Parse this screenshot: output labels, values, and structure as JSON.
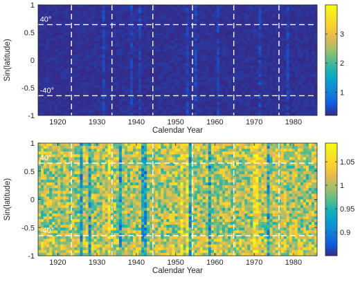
{
  "chart_data": [
    {
      "type": "heatmap",
      "title": "",
      "xlabel": "Calendar Year",
      "ylabel": "Sin(latitude)",
      "xlim": [
        1915,
        1986
      ],
      "ylim": [
        -1,
        1
      ],
      "xticks": [
        1920,
        1930,
        1940,
        1950,
        1960,
        1970,
        1980
      ],
      "yticks": [
        -1,
        -0.5,
        0,
        0.5,
        1
      ],
      "ytick_labels": [
        "-1",
        "-0.5",
        "0",
        "0.5",
        "1"
      ],
      "vertical_dashed_lines_x": [
        1923.5,
        1933.8,
        1944.2,
        1954.3,
        1964.8,
        1976.3
      ],
      "horizontal_dashed_lines_y": [
        -0.643,
        0.643
      ],
      "annotations": [
        {
          "text": "40°",
          "x": 1915.3,
          "y": 0.643
        },
        {
          "text": "-40°",
          "x": 1915.3,
          "y": -0.643
        }
      ],
      "colorbar": {
        "colormap": "parula",
        "range": [
          0.2,
          4
        ],
        "ticks": [
          1,
          2,
          3
        ],
        "tick_labels": [
          "1",
          "2",
          "3"
        ]
      },
      "typical_value": 0.25
    },
    {
      "type": "heatmap",
      "title": "",
      "xlabel": "Calendar Year",
      "ylabel": "Sin(latitude)",
      "xlim": [
        1915,
        1986
      ],
      "ylim": [
        -1,
        1
      ],
      "xticks": [
        1920,
        1930,
        1940,
        1950,
        1960,
        1970,
        1980
      ],
      "yticks": [
        -1,
        -0.5,
        0,
        0.5,
        1
      ],
      "ytick_labels": [
        "-1",
        "-0.5",
        "0",
        "0.5",
        "1"
      ],
      "vertical_dashed_lines_x": [
        1923.5,
        1933.8,
        1944.2,
        1954.3,
        1964.8,
        1976.3
      ],
      "horizontal_dashed_lines_y": [
        -0.643,
        0.643
      ],
      "annotations": [
        {
          "text": "40°",
          "x": 1915.3,
          "y": 0.643
        },
        {
          "text": "-40°",
          "x": 1915.3,
          "y": -0.643
        }
      ],
      "colorbar": {
        "colormap": "parula",
        "range": [
          0.85,
          1.09
        ],
        "ticks": [
          0.9,
          0.95,
          1,
          1.05
        ],
        "tick_labels": [
          "0.9",
          "0.95",
          "1",
          "1.05"
        ]
      },
      "typical_value": 1.0
    }
  ]
}
